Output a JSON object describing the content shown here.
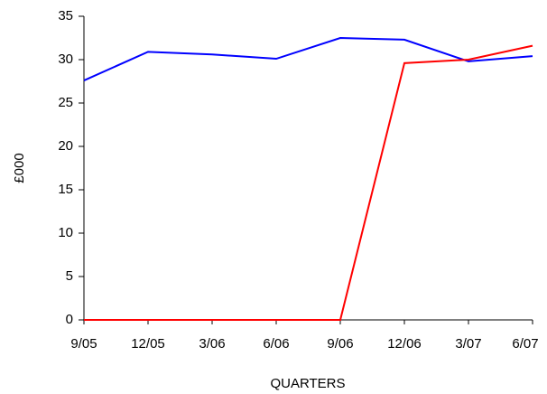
{
  "chart_data": {
    "type": "line",
    "x_label": "QUARTERS",
    "y_label": "£000",
    "categories": [
      "9/05",
      "12/05",
      "3/06",
      "6/06",
      "9/06",
      "12/06",
      "3/07",
      "6/07"
    ],
    "series": [
      {
        "color": "#0000ff",
        "values": [
          27.6,
          30.9,
          30.6,
          30.1,
          32.5,
          32.3,
          29.8,
          30.4
        ]
      },
      {
        "color": "#ff0000",
        "values": [
          0,
          0,
          0,
          0,
          0,
          29.6,
          30.0,
          31.6
        ]
      }
    ],
    "ylim": [
      0,
      35
    ],
    "yticks": [
      0,
      5,
      10,
      15,
      20,
      25,
      30,
      35
    ]
  }
}
